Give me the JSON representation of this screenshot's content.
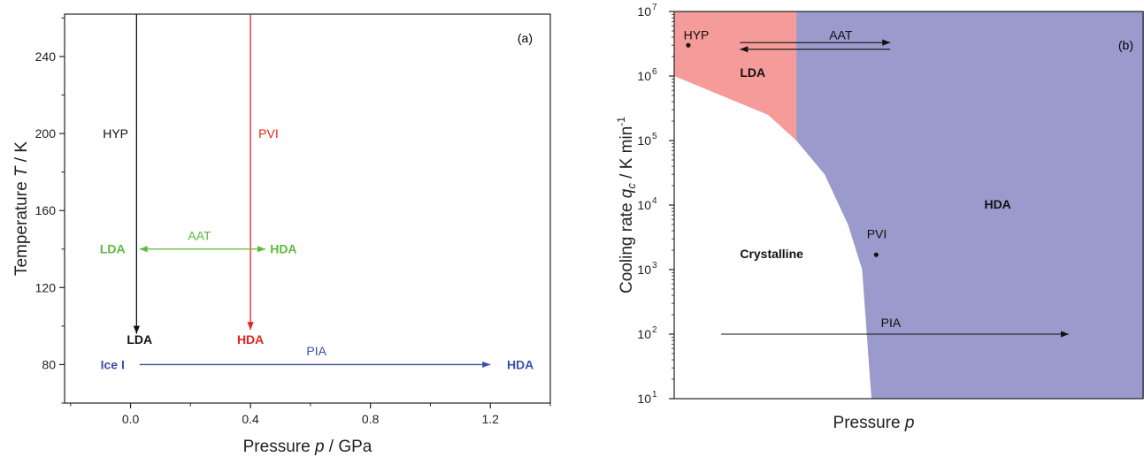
{
  "chart_data": [
    {
      "type": "line",
      "panel_label": "(a)",
      "xlabel": "Pressure p / GPa",
      "ylabel": "Temperature T / K",
      "xlim": [
        -0.22,
        1.4
      ],
      "ylim": [
        60,
        262
      ],
      "xticks": [
        0.0,
        0.4,
        0.8,
        1.2
      ],
      "xtick_labels": [
        "0.0",
        "0.4",
        "0.8",
        "1.2"
      ],
      "yticks": [
        80,
        120,
        160,
        200,
        240
      ],
      "ytick_labels": [
        "80",
        "120",
        "160",
        "200",
        "240"
      ],
      "grid": false,
      "series": [
        {
          "name": "HYP",
          "color": "#111111",
          "style": "arrow",
          "x": [
            0.02,
            0.02
          ],
          "y": [
            262,
            96
          ]
        },
        {
          "name": "PVI",
          "color": "#e8221b",
          "style": "arrow",
          "x": [
            0.4,
            0.4
          ],
          "y": [
            262,
            98
          ]
        },
        {
          "name": "AAT",
          "color": "#5cba3c",
          "style": "double-arrow",
          "x": [
            0.03,
            0.45
          ],
          "y": [
            140,
            140
          ]
        },
        {
          "name": "PIA",
          "color": "#3a4fa8",
          "style": "arrow",
          "x": [
            0.03,
            1.2
          ],
          "y": [
            80,
            80
          ]
        }
      ],
      "annotations": [
        {
          "text": "HYP",
          "color": "#111111",
          "bold": false,
          "x": -0.05,
          "y": 200
        },
        {
          "text": "PVI",
          "color": "#e8221b",
          "bold": false,
          "x": 0.46,
          "y": 200
        },
        {
          "text": "AAT",
          "color": "#5cba3c",
          "bold": false,
          "x": 0.23,
          "y": 147
        },
        {
          "text": "LDA",
          "color": "#5cba3c",
          "bold": true,
          "x": -0.06,
          "y": 140
        },
        {
          "text": "HDA",
          "color": "#5cba3c",
          "bold": true,
          "x": 0.51,
          "y": 140
        },
        {
          "text": "LDA",
          "color": "#111111",
          "bold": true,
          "x": 0.03,
          "y": 93
        },
        {
          "text": "HDA",
          "color": "#e8221b",
          "bold": true,
          "x": 0.4,
          "y": 93
        },
        {
          "text": "PIA",
          "color": "#3a4fa8",
          "bold": false,
          "x": 0.62,
          "y": 87
        },
        {
          "text": "Ice I",
          "color": "#3a4fa8",
          "bold": true,
          "x": -0.06,
          "y": 80
        },
        {
          "text": "HDA",
          "color": "#3a4fa8",
          "bold": true,
          "x": 1.3,
          "y": 80
        }
      ]
    },
    {
      "type": "area",
      "panel_label": "(b)",
      "xlabel": "Pressure p",
      "ylabel": "Cooling rate q_c / K min^-1",
      "ylabel_parts": {
        "main": "Cooling rate ",
        "symbol": "q",
        "sub": "c",
        "rest": " / K min",
        "sup": "-1"
      },
      "yscale": "log",
      "ylim": [
        10,
        10000000
      ],
      "xlim": [
        0,
        1
      ],
      "x_ticks": "none",
      "ytick_labels": [
        {
          "base": "10",
          "exp": "1"
        },
        {
          "base": "10",
          "exp": "2"
        },
        {
          "base": "10",
          "exp": "3"
        },
        {
          "base": "10",
          "exp": "4"
        },
        {
          "base": "10",
          "exp": "5"
        },
        {
          "base": "10",
          "exp": "6"
        },
        {
          "base": "10",
          "exp": "7"
        }
      ],
      "regions": [
        {
          "name": "LDA",
          "color": "#f59b9a"
        },
        {
          "name": "HDA",
          "color": "#9a9acc"
        },
        {
          "name": "Crystalline",
          "color": "#ffffff"
        }
      ],
      "boundary_crystalline": {
        "x": [
          0,
          0.1,
          0.2,
          0.26,
          0.32,
          0.37,
          0.4,
          0.41,
          0.415,
          0.42
        ],
        "y": [
          1000000,
          500000,
          250000,
          100000,
          30000,
          5000,
          1000,
          100,
          30,
          10
        ]
      },
      "boundary_lda_hda_x": 0.26,
      "points": [
        {
          "name": "HYP",
          "x": 0.03,
          "y": 3000000
        },
        {
          "name": "PVI",
          "x": 0.43,
          "y": 1700
        }
      ],
      "arrows": [
        {
          "name": "AAT",
          "style": "double",
          "x": [
            0.14,
            0.46
          ],
          "y": [
            3300000,
            2600000
          ]
        },
        {
          "name": "PIA",
          "style": "single",
          "x": [
            0.1,
            0.84
          ],
          "y": [
            100,
            100
          ]
        }
      ],
      "annotations": [
        {
          "text": "HYP",
          "bold": false,
          "x": 0.02,
          "y": 4200000
        },
        {
          "text": "AAT",
          "bold": false,
          "x": 0.33,
          "y": 4200000
        },
        {
          "text": "LDA",
          "bold": true,
          "x": 0.14,
          "y": 1100000
        },
        {
          "text": "HDA",
          "bold": true,
          "x": 0.66,
          "y": 10000
        },
        {
          "text": "Crystalline",
          "bold": true,
          "x": 0.14,
          "y": 1700
        },
        {
          "text": "PVI",
          "bold": false,
          "x": 0.41,
          "y": 3500
        },
        {
          "text": "PIA",
          "bold": false,
          "x": 0.44,
          "y": 145
        }
      ]
    }
  ]
}
